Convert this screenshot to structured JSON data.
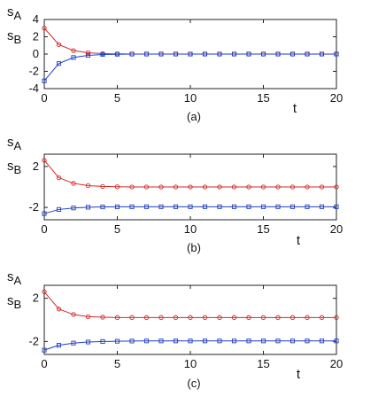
{
  "chart_data": [
    {
      "type": "line",
      "caption": "(a)",
      "ylabel_top": "s",
      "ylabel_top_sub": "A",
      "ylabel_bottom": "s",
      "ylabel_bottom_sub": "B",
      "xlabel": "t",
      "xlim": [
        0,
        20
      ],
      "ylim": [
        -4,
        4
      ],
      "xticks": [
        0,
        5,
        10,
        15,
        20
      ],
      "yticks": [
        4,
        2,
        0,
        -2,
        -4
      ],
      "x": [
        0,
        1,
        2,
        3,
        4,
        5,
        6,
        7,
        8,
        9,
        10,
        11,
        12,
        13,
        14,
        15,
        16,
        17,
        18,
        19,
        20
      ],
      "series": [
        {
          "color": "#d62728",
          "marker": "circle",
          "values": [
            3.0,
            1.1,
            0.4,
            0.15,
            0.05,
            0.02,
            0,
            0,
            0,
            0,
            0,
            0,
            0,
            0,
            0,
            0,
            0,
            0,
            0,
            0,
            0
          ]
        },
        {
          "color": "#1f3fbf",
          "marker": "square",
          "values": [
            -3.1,
            -1.1,
            -0.4,
            -0.15,
            -0.05,
            -0.02,
            0,
            0,
            0,
            0,
            0,
            0,
            0,
            0,
            0,
            0,
            0,
            0,
            0,
            0,
            0
          ]
        }
      ]
    },
    {
      "type": "line",
      "caption": "(b)",
      "ylabel_top": "s",
      "ylabel_top_sub": "A",
      "ylabel_bottom": "s",
      "ylabel_bottom_sub": "B",
      "xlabel": "t",
      "xlim": [
        0,
        20
      ],
      "ylim": [
        -3.2,
        3.2
      ],
      "xticks": [
        0,
        5,
        10,
        15,
        20
      ],
      "yticks": [
        2,
        -2
      ],
      "x": [
        0,
        1,
        2,
        3,
        4,
        5,
        6,
        7,
        8,
        9,
        10,
        11,
        12,
        13,
        14,
        15,
        16,
        17,
        18,
        19,
        20
      ],
      "series": [
        {
          "color": "#d62728",
          "marker": "circle",
          "values": [
            2.6,
            0.9,
            0.35,
            0.13,
            0.05,
            0.02,
            0,
            0,
            0,
            0,
            0,
            0,
            0,
            0,
            0,
            0,
            0,
            0,
            0,
            0,
            0
          ]
        },
        {
          "color": "#1f3fbf",
          "marker": "square",
          "values": [
            -2.6,
            -2.2,
            -2.05,
            -1.98,
            -1.95,
            -1.94,
            -1.93,
            -1.93,
            -1.93,
            -1.93,
            -1.93,
            -1.93,
            -1.93,
            -1.93,
            -1.93,
            -1.93,
            -1.93,
            -1.93,
            -1.93,
            -1.93,
            -1.93
          ]
        }
      ]
    },
    {
      "type": "line",
      "caption": "(c)",
      "ylabel_top": "s",
      "ylabel_top_sub": "A",
      "ylabel_bottom": "s",
      "ylabel_bottom_sub": "B",
      "xlabel": "t",
      "xlim": [
        0,
        20
      ],
      "ylim": [
        -3.2,
        3.2
      ],
      "xticks": [
        0,
        5,
        10,
        15,
        20
      ],
      "yticks": [
        2,
        -2
      ],
      "x": [
        0,
        1,
        2,
        3,
        4,
        5,
        6,
        7,
        8,
        9,
        10,
        11,
        12,
        13,
        14,
        15,
        16,
        17,
        18,
        19,
        20
      ],
      "series": [
        {
          "color": "#d62728",
          "marker": "circle",
          "values": [
            2.6,
            1.0,
            0.5,
            0.3,
            0.25,
            0.22,
            0.22,
            0.22,
            0.22,
            0.22,
            0.22,
            0.22,
            0.22,
            0.22,
            0.22,
            0.22,
            0.22,
            0.22,
            0.22,
            0.22,
            0.22
          ]
        },
        {
          "color": "#1f3fbf",
          "marker": "square",
          "values": [
            -2.8,
            -2.35,
            -2.15,
            -2.05,
            -2.0,
            -1.98,
            -1.96,
            -1.95,
            -1.95,
            -1.95,
            -1.95,
            -1.95,
            -1.95,
            -1.95,
            -1.95,
            -1.95,
            -1.95,
            -1.95,
            -1.95,
            -1.95,
            -1.95
          ]
        }
      ]
    }
  ]
}
